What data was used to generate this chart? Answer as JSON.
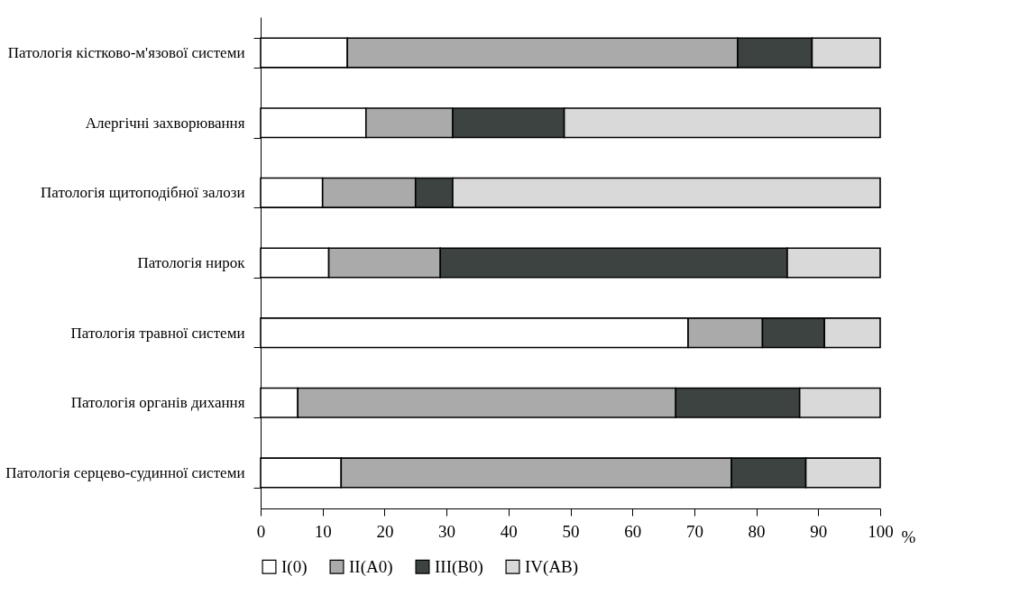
{
  "chart_data": {
    "type": "bar",
    "orientation": "horizontal",
    "stacked": true,
    "xlabel": "%",
    "categories": [
      "Патологія кістково-м'язової системи",
      "Алергічні захворювання",
      "Патологія щитоподібної залози",
      "Патологія нирок",
      "Патологія травної системи",
      "Патологія органів дихання",
      "Патологія серцево-судинної системи"
    ],
    "series": [
      {
        "name": "I(0)",
        "color": "#ffffff",
        "values": [
          14,
          17,
          10,
          11,
          69,
          6,
          13
        ]
      },
      {
        "name": "II(A0)",
        "color": "#a9aaa9",
        "values": [
          63,
          14,
          15,
          18,
          12,
          61,
          63
        ]
      },
      {
        "name": "III(B0)",
        "color": "#3c4341",
        "values": [
          12,
          18,
          6,
          56,
          10,
          20,
          12
        ]
      },
      {
        "name": "IV(AB)",
        "color": "#d9d9d9",
        "values": [
          11,
          51,
          69,
          15,
          9,
          13,
          12
        ]
      }
    ],
    "xlim": [
      0,
      100
    ],
    "xticks": [
      0,
      10,
      20,
      30,
      40,
      50,
      60,
      70,
      80,
      90,
      100
    ],
    "grid": false,
    "legend": "bottom"
  }
}
